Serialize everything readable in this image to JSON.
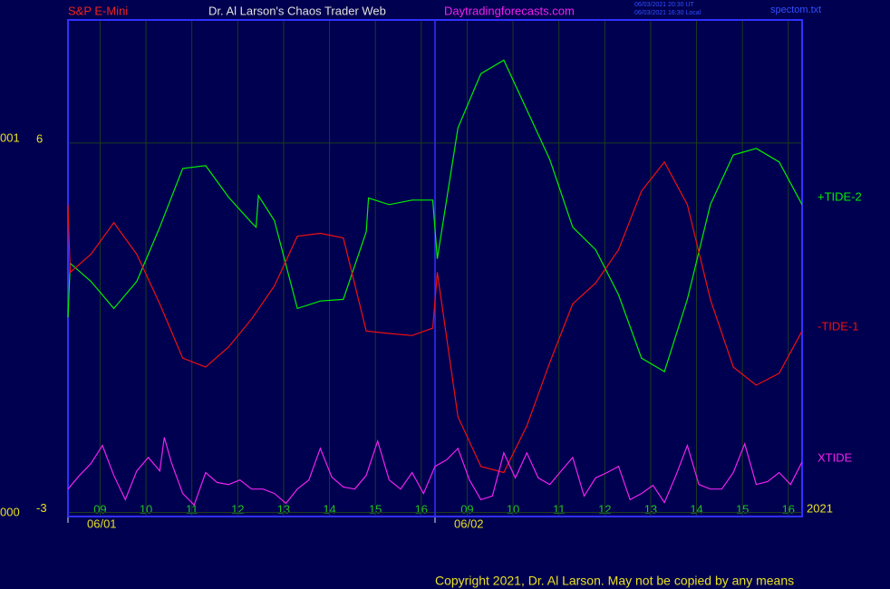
{
  "header": {
    "instrument": "S&P E-Mini",
    "site_title": "Dr. Al Larson's Chaos Trader Web",
    "url": "Daytradingforecasts.com",
    "timestamp_ut": "06/03/2021 20:30 UT",
    "timestamp_local": "06/03/2021 16:30 Local",
    "file": "spectom.txt"
  },
  "side_labels": {
    "top": "001",
    "bottom": "000",
    "year": "2021"
  },
  "footer": "Copyright 2021, Dr. Al Larson. May not be copied by any means",
  "chart_data": {
    "type": "line",
    "xlim": [
      0,
      16
    ],
    "ylim": [
      -3.1,
      9
    ],
    "yticks": [
      -3,
      6
    ],
    "xticks": [
      {
        "value": 0.7,
        "label": "09"
      },
      {
        "value": 1.7,
        "label": "10"
      },
      {
        "value": 2.7,
        "label": "11"
      },
      {
        "value": 3.7,
        "label": "12"
      },
      {
        "value": 4.7,
        "label": "13"
      },
      {
        "value": 5.7,
        "label": "14"
      },
      {
        "value": 6.7,
        "label": "15"
      },
      {
        "value": 7.7,
        "label": "16"
      },
      {
        "value": 8.7,
        "label": "09"
      },
      {
        "value": 9.7,
        "label": "10"
      },
      {
        "value": 10.7,
        "label": "11"
      },
      {
        "value": 11.7,
        "label": "12"
      },
      {
        "value": 12.7,
        "label": "13"
      },
      {
        "value": 13.7,
        "label": "14"
      },
      {
        "value": 14.7,
        "label": "15"
      },
      {
        "value": 15.7,
        "label": "16"
      }
    ],
    "date_ticks": [
      {
        "value": 0,
        "label": "06/01"
      },
      {
        "value": 8,
        "label": "06/02"
      }
    ],
    "grid": true,
    "series": [
      {
        "name": "+TIDE-2",
        "color": "#00ee00",
        "x": [
          0,
          0.05,
          0.5,
          1,
          1.5,
          2,
          2.5,
          3,
          3.5,
          4,
          4.1,
          4.15,
          4.5,
          5,
          5.5,
          6,
          6.5,
          6.55,
          7,
          7.5,
          7.95,
          8.05,
          8.5,
          9,
          9.5,
          10,
          10.5,
          11,
          11.5,
          12,
          12.5,
          13,
          13.5,
          14,
          14.5,
          15,
          15.5,
          16
        ],
        "values": [
          1.75,
          3.07,
          2.63,
          1.97,
          2.63,
          3.95,
          5.38,
          5.45,
          4.68,
          4.06,
          3.95,
          4.72,
          4.11,
          1.97,
          2.15,
          2.19,
          3.84,
          4.66,
          4.5,
          4.61,
          4.61,
          3.18,
          6.37,
          7.69,
          8.02,
          6.81,
          5.6,
          3.95,
          3.4,
          2.3,
          0.76,
          0.43,
          2.19,
          4.5,
          5.71,
          5.87,
          5.54,
          4.5
        ]
      },
      {
        "name": "-TIDE-1",
        "color": "#ee1010",
        "x": [
          0,
          0.05,
          0.5,
          1,
          1.5,
          2,
          2.5,
          3,
          3.5,
          4,
          4.5,
          5,
          5.5,
          6,
          6.5,
          7,
          7.5,
          7.95,
          8.05,
          8.5,
          9,
          9.5,
          10,
          10.5,
          11,
          11.5,
          12,
          12.5,
          13,
          13.5,
          14,
          14.5,
          15,
          15.5,
          16
        ],
        "values": [
          4.5,
          2.85,
          3.29,
          4.06,
          3.29,
          2.08,
          0.76,
          0.54,
          1.03,
          1.71,
          2.52,
          3.73,
          3.8,
          3.69,
          1.42,
          1.36,
          1.31,
          1.49,
          2.85,
          -0.67,
          -1.88,
          -2.03,
          -0.89,
          0.65,
          2.08,
          2.59,
          3.4,
          4.83,
          5.54,
          4.5,
          2.19,
          0.54,
          0.1,
          0.39,
          1.42
        ]
      },
      {
        "name": "XTIDE",
        "color": "#ee22ee",
        "x": [
          0,
          0.25,
          0.5,
          0.75,
          1,
          1.25,
          1.5,
          1.75,
          2,
          2.1,
          2.25,
          2.5,
          2.75,
          3,
          3.25,
          3.5,
          3.75,
          4,
          4.25,
          4.5,
          4.75,
          5,
          5.25,
          5.5,
          5.75,
          6,
          6.25,
          6.5,
          6.75,
          7,
          7.25,
          7.5,
          7.75,
          8,
          8.25,
          8.5,
          8.75,
          9,
          9.25,
          9.5,
          9.75,
          10,
          10.25,
          10.5,
          10.75,
          11,
          11.25,
          11.5,
          11.75,
          12,
          12.25,
          12.5,
          12.75,
          13,
          13.25,
          13.5,
          13.75,
          14,
          14.25,
          14.5,
          14.75,
          15,
          15.25,
          15.5,
          15.75,
          16
        ],
        "values": [
          -2.43,
          -2.1,
          -1.81,
          -1.37,
          -2.1,
          -2.69,
          -1.99,
          -1.66,
          -1.99,
          -1.17,
          -1.77,
          -2.54,
          -2.82,
          -2.03,
          -2.27,
          -2.32,
          -2.21,
          -2.43,
          -2.43,
          -2.54,
          -2.78,
          -2.43,
          -2.21,
          -1.44,
          -2.14,
          -2.38,
          -2.43,
          -2.1,
          -1.26,
          -2.21,
          -2.43,
          -2.03,
          -2.54,
          -1.88,
          -1.72,
          -1.44,
          -2.21,
          -2.69,
          -2.6,
          -1.55,
          -2.16,
          -1.55,
          -2.16,
          -2.32,
          -1.99,
          -1.66,
          -2.6,
          -2.16,
          -2.03,
          -1.88,
          -2.69,
          -2.54,
          -2.34,
          -2.76,
          -2.1,
          -1.37,
          -2.32,
          -2.43,
          -2.43,
          -2.03,
          -1.33,
          -2.32,
          -2.25,
          -2.03,
          -2.32,
          -1.77
        ]
      }
    ]
  }
}
